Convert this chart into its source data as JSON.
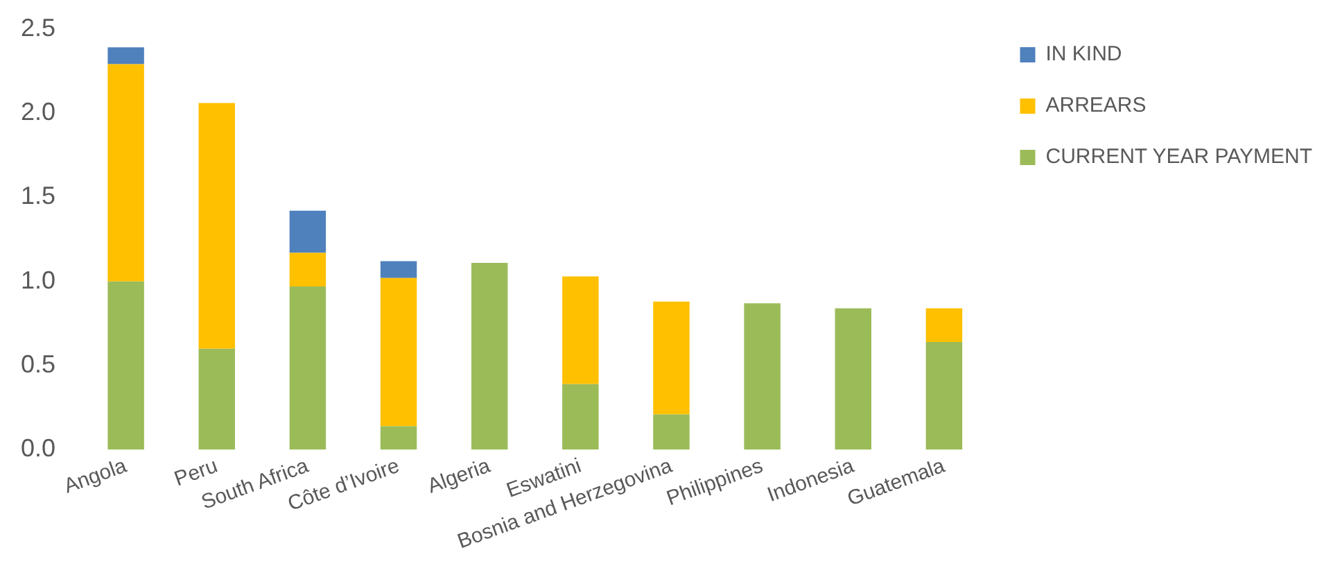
{
  "chart_data": {
    "type": "bar",
    "stacked": true,
    "categories": [
      "Angola",
      "Peru",
      "South Africa",
      "Côte d’Ivoire",
      "Algeria",
      "Eswatini",
      "Bosnia and Herzegovina",
      "Philippines",
      "Indonesia",
      "Guatemala"
    ],
    "series": [
      {
        "name": "CURRENT YEAR PAYMENT",
        "color": "#9bbb59",
        "values": [
          1.0,
          0.6,
          0.97,
          0.14,
          1.11,
          0.39,
          0.21,
          0.87,
          0.84,
          0.64
        ]
      },
      {
        "name": "ARREARS",
        "color": "#ffc000",
        "values": [
          1.29,
          1.46,
          0.2,
          0.88,
          null,
          0.64,
          0.67,
          null,
          null,
          0.2
        ]
      },
      {
        "name": "IN KIND",
        "color": "#4f81bd",
        "values": [
          0.1,
          null,
          0.25,
          0.1,
          null,
          null,
          null,
          null,
          null,
          null
        ]
      }
    ],
    "ylim": [
      0,
      2.5
    ],
    "yticks": [
      {
        "value": 0,
        "label": "0.0"
      },
      {
        "value": 0.5,
        "label": "0.5"
      },
      {
        "value": 1,
        "label": "1.0"
      },
      {
        "value": 1.5,
        "label": "1.5"
      },
      {
        "value": 2,
        "label": "2.0"
      },
      {
        "value": 2.5,
        "label": "2.5"
      }
    ],
    "grid": false,
    "legend": "top right"
  }
}
